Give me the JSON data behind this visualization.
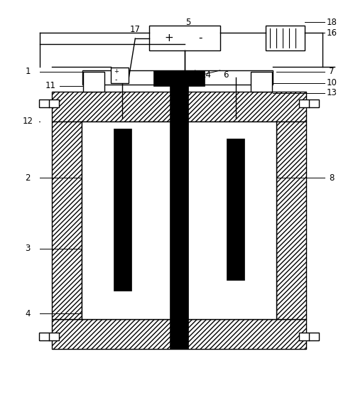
{
  "fig_width": 5.04,
  "fig_height": 5.6,
  "dpi": 100,
  "bg_color": "#ffffff"
}
